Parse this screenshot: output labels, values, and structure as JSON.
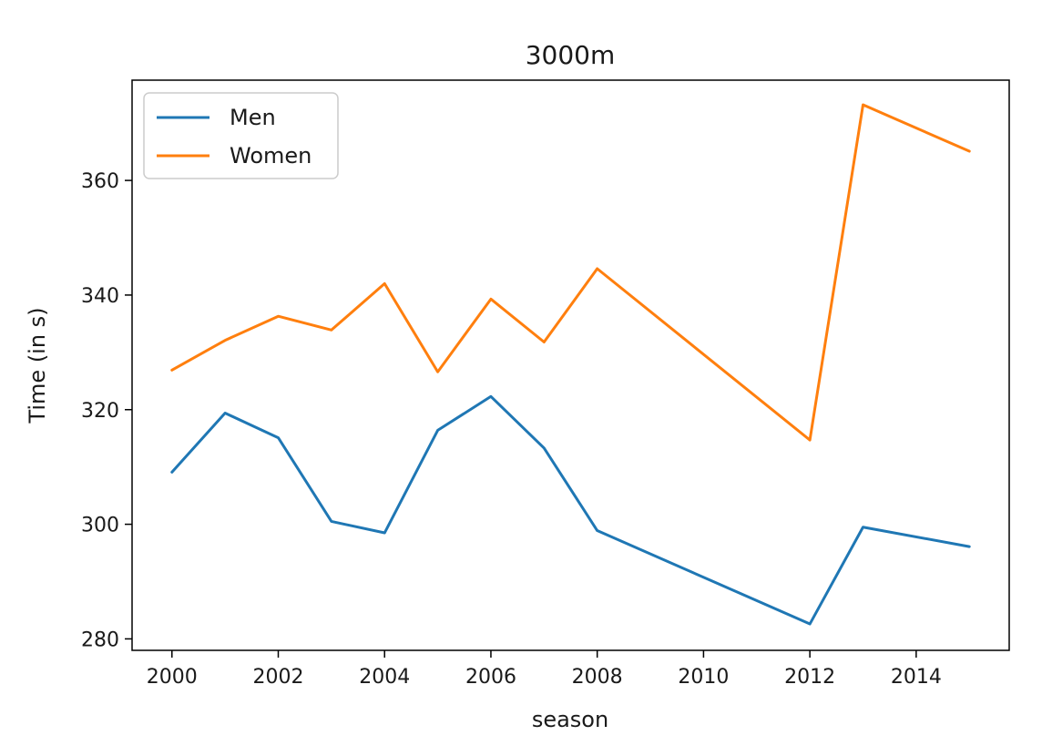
{
  "chart_data": {
    "type": "line",
    "title": "3000m",
    "xlabel": "season",
    "ylabel": "Time (in s)",
    "x_ticks": [
      2000,
      2002,
      2004,
      2006,
      2008,
      2010,
      2012,
      2014
    ],
    "y_ticks": [
      280,
      300,
      320,
      340,
      360
    ],
    "xlim": [
      1999.25,
      2015.75
    ],
    "ylim": [
      278.0,
      377.5
    ],
    "grid": false,
    "legend_position": "upper-left",
    "series": [
      {
        "name": "Men",
        "color": "#1f77b4",
        "points": [
          {
            "x": 2000,
            "y": 309.1
          },
          {
            "x": 2001,
            "y": 319.4
          },
          {
            "x": 2002,
            "y": 315.1
          },
          {
            "x": 2003,
            "y": 300.5
          },
          {
            "x": 2004,
            "y": 298.5
          },
          {
            "x": 2005,
            "y": 316.4
          },
          {
            "x": 2006,
            "y": 322.3
          },
          {
            "x": 2007,
            "y": 313.3
          },
          {
            "x": 2008,
            "y": 298.9
          },
          {
            "x": 2012,
            "y": 282.6
          },
          {
            "x": 2013,
            "y": 299.5
          },
          {
            "x": 2015,
            "y": 296.1
          }
        ]
      },
      {
        "name": "Women",
        "color": "#ff7f0e",
        "points": [
          {
            "x": 2000,
            "y": 326.9
          },
          {
            "x": 2001,
            "y": 332.1
          },
          {
            "x": 2002,
            "y": 336.3
          },
          {
            "x": 2003,
            "y": 333.9
          },
          {
            "x": 2004,
            "y": 342.0
          },
          {
            "x": 2005,
            "y": 326.6
          },
          {
            "x": 2006,
            "y": 339.3
          },
          {
            "x": 2007,
            "y": 331.8
          },
          {
            "x": 2008,
            "y": 344.6
          },
          {
            "x": 2012,
            "y": 314.7
          },
          {
            "x": 2013,
            "y": 373.2
          },
          {
            "x": 2015,
            "y": 365.1
          }
        ]
      }
    ]
  }
}
